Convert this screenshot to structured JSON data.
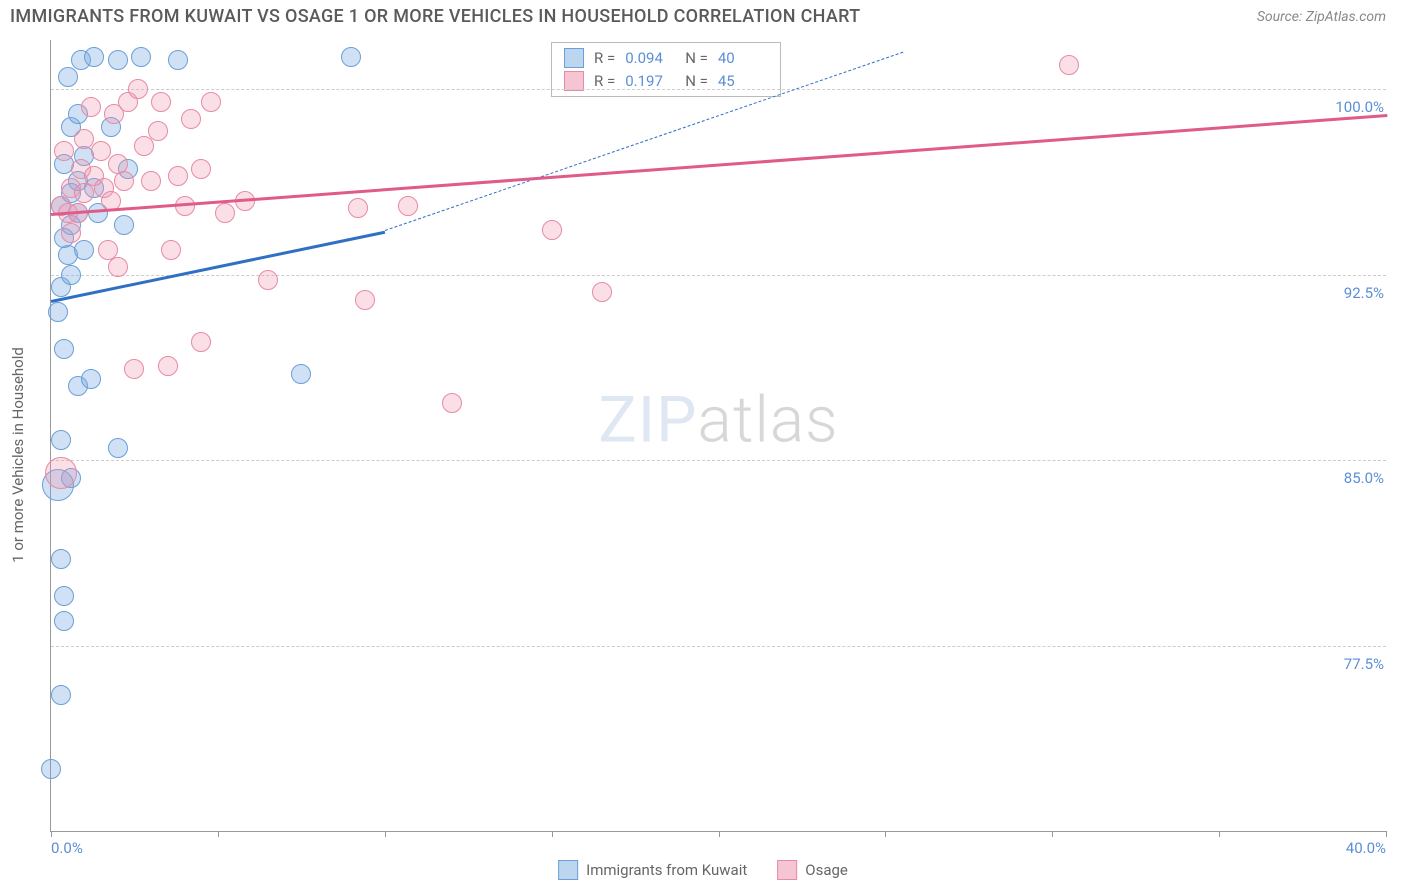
{
  "header": {
    "title": "IMMIGRANTS FROM KUWAIT VS OSAGE 1 OR MORE VEHICLES IN HOUSEHOLD CORRELATION CHART",
    "source": "Source: ZipAtlas.com"
  },
  "watermark": {
    "bold": "ZIP",
    "thin": "atlas"
  },
  "chart": {
    "type": "scatter",
    "ylabel": "1 or more Vehicles in Household",
    "xlim": [
      0,
      40
    ],
    "ylim": [
      70,
      102
    ],
    "yticks": [
      {
        "v": 77.5,
        "label": "77.5%"
      },
      {
        "v": 85.0,
        "label": "85.0%"
      },
      {
        "v": 92.5,
        "label": "92.5%"
      },
      {
        "v": 100.0,
        "label": "100.0%"
      }
    ],
    "xticks_minor": [
      0,
      5,
      10,
      15,
      20,
      25,
      30,
      35,
      40
    ],
    "xticks": [
      {
        "v": 0,
        "label": "0.0%"
      },
      {
        "v": 40,
        "label": "40.0%"
      }
    ],
    "series": [
      {
        "name": "Immigrants from Kuwait",
        "color_fill": "rgba(120,170,225,0.35)",
        "color_stroke": "#6aa0d8",
        "color_swatch_fill": "#bcd6f0",
        "color_swatch_border": "#6aa0d8",
        "trend_color": "#2f6fc4",
        "r_label": "R =",
        "r_value": "0.094",
        "n_label": "N =",
        "n_value": "40",
        "marker_radius": 10,
        "trend": {
          "x1": 0,
          "y1": 91.5,
          "x2": 10,
          "y2": 94.3,
          "x2_ext": 25.5,
          "y2_ext": 101.5
        },
        "points": [
          {
            "x": 0.0,
            "y": 72.5
          },
          {
            "x": 0.3,
            "y": 75.5
          },
          {
            "x": 0.4,
            "y": 79.5
          },
          {
            "x": 0.4,
            "y": 78.5
          },
          {
            "x": 0.3,
            "y": 81.0
          },
          {
            "x": 0.2,
            "y": 84.0,
            "r": 16
          },
          {
            "x": 0.6,
            "y": 84.3
          },
          {
            "x": 0.3,
            "y": 85.8
          },
          {
            "x": 0.8,
            "y": 88.0
          },
          {
            "x": 1.2,
            "y": 88.3
          },
          {
            "x": 2.0,
            "y": 85.5
          },
          {
            "x": 0.4,
            "y": 89.5
          },
          {
            "x": 0.3,
            "y": 92.0
          },
          {
            "x": 0.6,
            "y": 92.5
          },
          {
            "x": 0.5,
            "y": 93.3
          },
          {
            "x": 0.4,
            "y": 94.0
          },
          {
            "x": 0.6,
            "y": 94.5
          },
          {
            "x": 0.8,
            "y": 95.0
          },
          {
            "x": 0.3,
            "y": 95.3
          },
          {
            "x": 0.6,
            "y": 95.8
          },
          {
            "x": 0.4,
            "y": 97.0
          },
          {
            "x": 0.6,
            "y": 98.5
          },
          {
            "x": 0.8,
            "y": 99.0
          },
          {
            "x": 0.5,
            "y": 100.5
          },
          {
            "x": 0.9,
            "y": 101.2
          },
          {
            "x": 1.3,
            "y": 101.3
          },
          {
            "x": 2.0,
            "y": 101.2
          },
          {
            "x": 2.7,
            "y": 101.3
          },
          {
            "x": 1.0,
            "y": 97.3
          },
          {
            "x": 1.4,
            "y": 95.0
          },
          {
            "x": 2.3,
            "y": 96.8
          },
          {
            "x": 3.8,
            "y": 101.2
          },
          {
            "x": 1.8,
            "y": 98.5
          },
          {
            "x": 9.0,
            "y": 101.3
          },
          {
            "x": 7.5,
            "y": 88.5
          },
          {
            "x": 1.0,
            "y": 93.5
          },
          {
            "x": 1.3,
            "y": 96.0
          },
          {
            "x": 2.2,
            "y": 94.5
          },
          {
            "x": 0.2,
            "y": 91.0
          },
          {
            "x": 0.8,
            "y": 96.3
          }
        ]
      },
      {
        "name": "Osage",
        "color_fill": "rgba(240,150,175,0.30)",
        "color_stroke": "#e88aa5",
        "color_swatch_fill": "#f5c5d3",
        "color_swatch_border": "#e88aa5",
        "trend_color": "#e05a8a",
        "r_label": "R =",
        "r_value": "0.197",
        "n_label": "N =",
        "n_value": "45",
        "marker_radius": 10,
        "trend": {
          "x1": 0,
          "y1": 95.0,
          "x2": 40,
          "y2": 99.0
        },
        "points": [
          {
            "x": 0.3,
            "y": 84.5,
            "r": 16
          },
          {
            "x": 0.3,
            "y": 95.3
          },
          {
            "x": 0.5,
            "y": 95.0
          },
          {
            "x": 0.8,
            "y": 95.0
          },
          {
            "x": 0.6,
            "y": 96.0
          },
          {
            "x": 0.9,
            "y": 96.8
          },
          {
            "x": 1.3,
            "y": 96.5
          },
          {
            "x": 1.6,
            "y": 96.0
          },
          {
            "x": 1.8,
            "y": 95.5
          },
          {
            "x": 2.2,
            "y": 96.3
          },
          {
            "x": 1.9,
            "y": 99.0
          },
          {
            "x": 2.3,
            "y": 99.5
          },
          {
            "x": 2.6,
            "y": 100.0
          },
          {
            "x": 3.3,
            "y": 99.5
          },
          {
            "x": 3.0,
            "y": 96.3
          },
          {
            "x": 3.8,
            "y": 96.5
          },
          {
            "x": 4.5,
            "y": 96.8
          },
          {
            "x": 4.8,
            "y": 99.5
          },
          {
            "x": 5.2,
            "y": 95.0
          },
          {
            "x": 4.0,
            "y": 95.3
          },
          {
            "x": 5.8,
            "y": 95.5
          },
          {
            "x": 6.5,
            "y": 92.3
          },
          {
            "x": 4.5,
            "y": 89.8
          },
          {
            "x": 2.5,
            "y": 88.7
          },
          {
            "x": 3.5,
            "y": 88.8
          },
          {
            "x": 2.0,
            "y": 92.8
          },
          {
            "x": 9.4,
            "y": 91.5
          },
          {
            "x": 9.2,
            "y": 95.2
          },
          {
            "x": 10.7,
            "y": 95.3
          },
          {
            "x": 12.0,
            "y": 87.3
          },
          {
            "x": 15.0,
            "y": 94.3
          },
          {
            "x": 16.5,
            "y": 91.8
          },
          {
            "x": 1.0,
            "y": 98.0
          },
          {
            "x": 1.5,
            "y": 97.5
          },
          {
            "x": 2.8,
            "y": 97.7
          },
          {
            "x": 3.2,
            "y": 98.3
          },
          {
            "x": 1.2,
            "y": 99.3
          },
          {
            "x": 4.2,
            "y": 98.8
          },
          {
            "x": 1.7,
            "y": 93.5
          },
          {
            "x": 30.5,
            "y": 101.0
          },
          {
            "x": 3.6,
            "y": 93.5
          },
          {
            "x": 0.6,
            "y": 94.2
          },
          {
            "x": 1.0,
            "y": 95.8
          },
          {
            "x": 2.0,
            "y": 97.0
          },
          {
            "x": 0.4,
            "y": 97.5
          }
        ]
      }
    ],
    "background_color": "#ffffff",
    "grid_color": "#cccccc"
  },
  "bottom_legend": [
    {
      "label": "Immigrants from Kuwait",
      "series": 0
    },
    {
      "label": "Osage",
      "series": 1
    }
  ]
}
